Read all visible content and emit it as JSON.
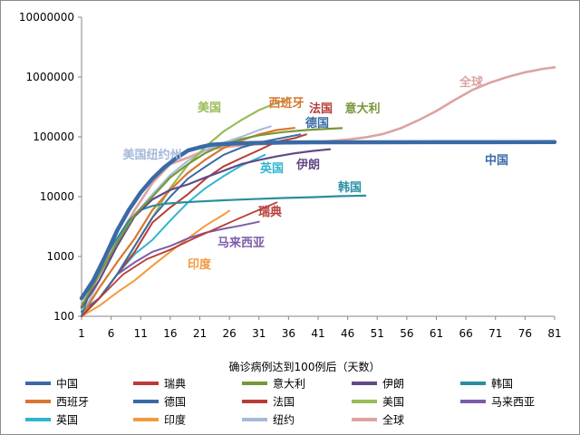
{
  "chart_data": {
    "type": "line",
    "xlabel": "确诊病例达到100例后（天数）",
    "ylabel": "",
    "yscale": "log",
    "ylim": [
      100,
      10000000
    ],
    "xlim": [
      1,
      81
    ],
    "x_ticks": [
      "1",
      "6",
      "11",
      "16",
      "21",
      "26",
      "31",
      "36",
      "41",
      "46",
      "51",
      "56",
      "61",
      "66",
      "71",
      "76",
      "81"
    ],
    "y_ticks": [
      "100",
      "1000",
      "10000",
      "100000",
      "1000000",
      "10000000"
    ],
    "grid": false,
    "legend_position": "bottom",
    "series": [
      {
        "name": "中国",
        "color": "#3a6aa6",
        "width": 4.5,
        "label": "中国",
        "points": [
          [
            1,
            200
          ],
          [
            3,
            400
          ],
          [
            5,
            1000
          ],
          [
            7,
            2700
          ],
          [
            9,
            6000
          ],
          [
            11,
            11800
          ],
          [
            13,
            20000
          ],
          [
            15,
            31000
          ],
          [
            17,
            44000
          ],
          [
            19,
            59000
          ],
          [
            21,
            67000
          ],
          [
            23,
            74000
          ],
          [
            25,
            76000
          ],
          [
            27,
            77500
          ],
          [
            30,
            79000
          ],
          [
            35,
            80500
          ],
          [
            40,
            81000
          ],
          [
            50,
            81200
          ],
          [
            60,
            81300
          ],
          [
            70,
            81400
          ],
          [
            81,
            81600
          ]
        ]
      },
      {
        "name": "瑞典",
        "color": "#b83c37",
        "width": 1.8,
        "label": "瑞典",
        "points": [
          [
            1,
            100
          ],
          [
            4,
            200
          ],
          [
            8,
            500
          ],
          [
            12,
            900
          ],
          [
            16,
            1300
          ],
          [
            20,
            2000
          ],
          [
            24,
            3000
          ],
          [
            28,
            4500
          ],
          [
            31,
            6000
          ],
          [
            34,
            8000
          ]
        ]
      },
      {
        "name": "意大利",
        "color": "#78973a",
        "width": 2.2,
        "label": "意大利",
        "points": [
          [
            1,
            150
          ],
          [
            4,
            500
          ],
          [
            7,
            1700
          ],
          [
            10,
            5000
          ],
          [
            13,
            10000
          ],
          [
            16,
            21000
          ],
          [
            19,
            35000
          ],
          [
            22,
            54000
          ],
          [
            25,
            74000
          ],
          [
            28,
            92000
          ],
          [
            31,
            106000
          ],
          [
            35,
            120000
          ],
          [
            39,
            130000
          ],
          [
            42,
            135000
          ],
          [
            45,
            140000
          ]
        ]
      },
      {
        "name": "伊朗",
        "color": "#624a86",
        "width": 2.2,
        "label": "伊朗",
        "points": [
          [
            1,
            140
          ],
          [
            4,
            400
          ],
          [
            7,
            1500
          ],
          [
            10,
            4700
          ],
          [
            13,
            9000
          ],
          [
            16,
            13000
          ],
          [
            19,
            16000
          ],
          [
            22,
            21000
          ],
          [
            25,
            27000
          ],
          [
            28,
            35000
          ],
          [
            31,
            41000
          ],
          [
            34,
            47000
          ],
          [
            37,
            53000
          ],
          [
            40,
            58000
          ],
          [
            43,
            62000
          ]
        ]
      },
      {
        "name": "韩国",
        "color": "#2a8ea0",
        "width": 2.2,
        "label": "韩国",
        "points": [
          [
            1,
            100
          ],
          [
            3,
            400
          ],
          [
            5,
            1000
          ],
          [
            7,
            2000
          ],
          [
            9,
            4000
          ],
          [
            11,
            6000
          ],
          [
            13,
            7000
          ],
          [
            15,
            7600
          ],
          [
            18,
            8000
          ],
          [
            21,
            8300
          ],
          [
            25,
            8700
          ],
          [
            30,
            9100
          ],
          [
            35,
            9500
          ],
          [
            40,
            9800
          ],
          [
            45,
            10200
          ],
          [
            49,
            10400
          ]
        ]
      },
      {
        "name": "西班牙",
        "color": "#d9762f",
        "width": 2.2,
        "label": "西班牙",
        "points": [
          [
            1,
            100
          ],
          [
            4,
            300
          ],
          [
            7,
            800
          ],
          [
            10,
            2000
          ],
          [
            13,
            6000
          ],
          [
            16,
            13000
          ],
          [
            19,
            25000
          ],
          [
            22,
            42000
          ],
          [
            25,
            65000
          ],
          [
            28,
            87000
          ],
          [
            31,
            110000
          ],
          [
            34,
            130000
          ],
          [
            37,
            141000
          ]
        ]
      },
      {
        "name": "德国",
        "color": "#3a6aa6",
        "width": 2.0,
        "label": "德国",
        "points": [
          [
            1,
            120
          ],
          [
            4,
            200
          ],
          [
            7,
            500
          ],
          [
            10,
            1500
          ],
          [
            13,
            4500
          ],
          [
            16,
            10000
          ],
          [
            19,
            20000
          ],
          [
            22,
            32000
          ],
          [
            25,
            50000
          ],
          [
            28,
            66000
          ],
          [
            31,
            80000
          ],
          [
            34,
            92000
          ],
          [
            38,
            110000
          ]
        ]
      },
      {
        "name": "法国",
        "color": "#b83c37",
        "width": 2.0,
        "label": "法国",
        "points": [
          [
            1,
            100
          ],
          [
            4,
            200
          ],
          [
            7,
            500
          ],
          [
            10,
            1200
          ],
          [
            13,
            3700
          ],
          [
            16,
            6600
          ],
          [
            19,
            11000
          ],
          [
            22,
            20000
          ],
          [
            25,
            32000
          ],
          [
            28,
            44000
          ],
          [
            31,
            60000
          ],
          [
            34,
            83000
          ],
          [
            37,
            95000
          ],
          [
            39,
            110000
          ]
        ]
      },
      {
        "name": "美国",
        "color": "#9bbb59",
        "width": 2.2,
        "label": "美国",
        "points": [
          [
            1,
            100
          ],
          [
            4,
            200
          ],
          [
            7,
            500
          ],
          [
            10,
            1500
          ],
          [
            13,
            4500
          ],
          [
            16,
            14000
          ],
          [
            19,
            34000
          ],
          [
            22,
            69000
          ],
          [
            25,
            123000
          ],
          [
            28,
            190000
          ],
          [
            31,
            280000
          ],
          [
            34,
            370000
          ],
          [
            36,
            430000
          ]
        ]
      },
      {
        "name": "马来西亚",
        "color": "#7b5ca8",
        "width": 2.0,
        "label": "马来西亚",
        "points": [
          [
            1,
            100
          ],
          [
            4,
            200
          ],
          [
            7,
            500
          ],
          [
            10,
            800
          ],
          [
            13,
            1200
          ],
          [
            16,
            1500
          ],
          [
            19,
            2000
          ],
          [
            22,
            2500
          ],
          [
            25,
            2900
          ],
          [
            28,
            3300
          ],
          [
            31,
            3800
          ]
        ]
      },
      {
        "name": "英国",
        "color": "#2fb5d0",
        "width": 2.0,
        "label": "英国",
        "points": [
          [
            1,
            100
          ],
          [
            4,
            200
          ],
          [
            7,
            500
          ],
          [
            10,
            1100
          ],
          [
            13,
            1900
          ],
          [
            16,
            4000
          ],
          [
            19,
            8000
          ],
          [
            22,
            14000
          ],
          [
            25,
            22000
          ],
          [
            28,
            33000
          ],
          [
            31,
            45000
          ],
          [
            32,
            50000
          ]
        ]
      },
      {
        "name": "印度",
        "color": "#f39a3d",
        "width": 2.0,
        "label": "印度",
        "points": [
          [
            1,
            100
          ],
          [
            4,
            150
          ],
          [
            7,
            250
          ],
          [
            10,
            400
          ],
          [
            13,
            700
          ],
          [
            16,
            1200
          ],
          [
            19,
            2000
          ],
          [
            22,
            3300
          ],
          [
            25,
            5000
          ],
          [
            26,
            5800
          ]
        ]
      },
      {
        "name": "纽约",
        "color": "#a6b9d9",
        "width": 2.0,
        "label": "美国纽约州",
        "points": [
          [
            1,
            100
          ],
          [
            4,
            400
          ],
          [
            7,
            1500
          ],
          [
            10,
            5000
          ],
          [
            13,
            11000
          ],
          [
            16,
            23000
          ],
          [
            19,
            40000
          ],
          [
            22,
            60000
          ],
          [
            25,
            80000
          ],
          [
            28,
            100000
          ],
          [
            31,
            130000
          ],
          [
            33,
            150000
          ]
        ]
      },
      {
        "name": "全球",
        "color": "#dca3a2",
        "width": 2.6,
        "label": "全球",
        "points": [
          [
            1,
            140
          ],
          [
            4,
            500
          ],
          [
            7,
            1900
          ],
          [
            10,
            6000
          ],
          [
            13,
            17000
          ],
          [
            16,
            35000
          ],
          [
            19,
            45000
          ],
          [
            22,
            60000
          ],
          [
            25,
            67000
          ],
          [
            28,
            72000
          ],
          [
            31,
            75000
          ],
          [
            34,
            77000
          ],
          [
            37,
            79000
          ],
          [
            40,
            80500
          ],
          [
            43,
            85000
          ],
          [
            46,
            90000
          ],
          [
            49,
            98000
          ],
          [
            52,
            112000
          ],
          [
            55,
            140000
          ],
          [
            58,
            190000
          ],
          [
            61,
            270000
          ],
          [
            64,
            410000
          ],
          [
            67,
            600000
          ],
          [
            70,
            800000
          ],
          [
            73,
            1000000
          ],
          [
            76,
            1200000
          ],
          [
            79,
            1370000
          ],
          [
            81,
            1450000
          ]
        ]
      }
    ]
  }
}
